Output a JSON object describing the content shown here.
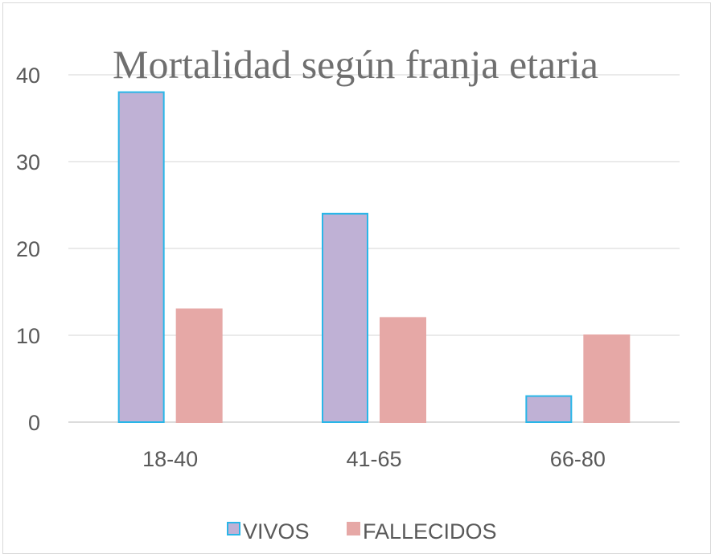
{
  "chart_data": {
    "type": "bar",
    "title": "Mortalidad según franja etaria",
    "xlabel": "",
    "ylabel": "",
    "categories": [
      "18-40",
      "41-65",
      "66-80"
    ],
    "series": [
      {
        "name": "VIVOS",
        "values": [
          38,
          24,
          3
        ],
        "color": "#bfb1d5",
        "edge": "#29b6e8"
      },
      {
        "name": "FALLECIDOS",
        "values": [
          13,
          12,
          10
        ],
        "color": "#e6a8a6",
        "edge": "#e6a8a6"
      }
    ],
    "ylim": [
      0,
      40
    ],
    "yticks": [
      "0",
      "10",
      "20",
      "30",
      "40"
    ],
    "grid": true,
    "legend": "bottom"
  }
}
